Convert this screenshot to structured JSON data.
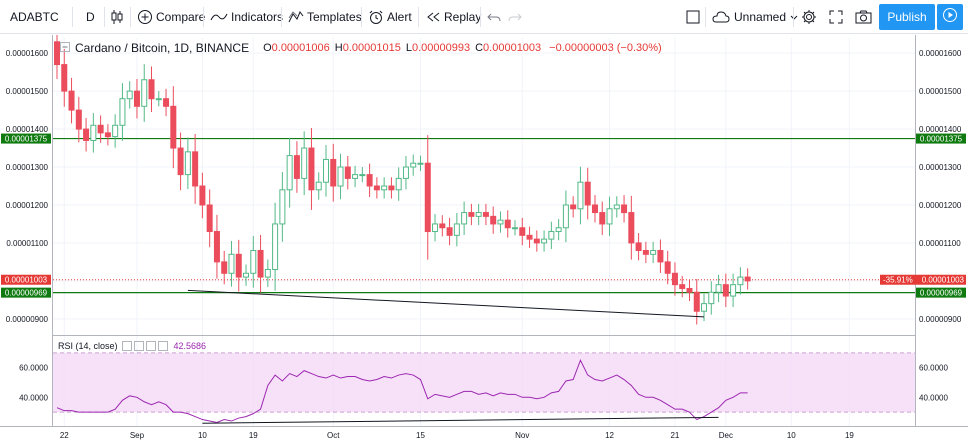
{
  "toolbar": {
    "symbol": "ADABTC",
    "interval": "D",
    "compare": "Compare",
    "indicators": "Indicators",
    "templates": "Templates",
    "alert": "Alert",
    "replay": "Replay",
    "layout_name": "Unnamed",
    "publish": "Publish"
  },
  "legend": {
    "title": "Cardano / Bitcoin, 1D, BINANCE",
    "open_label": "O",
    "open": "0.00001006",
    "high_label": "H",
    "high": "0.00001015",
    "low_label": "L",
    "low": "0.00000993",
    "close_label": "C",
    "close": "0.00001003",
    "change": "−0.00000003 (−0.30%)"
  },
  "colors": {
    "up": "#53b987",
    "down": "#eb4d5c",
    "accent": "#2196f3",
    "rsi": "#9c27b0",
    "hline": "#0f7a0f"
  },
  "chart_data": [
    {
      "type": "candlestick",
      "title": "Cardano / Bitcoin, 1D, BINANCE",
      "y_ticks": [
        "0.00001600",
        "0.00001500",
        "0.00001400",
        "0.00001300",
        "0.00001200",
        "0.00001100",
        "0.00001000",
        "0.00000900"
      ],
      "ylim": [
        8.6e-06,
        1.64e-05
      ],
      "x_ticks": [
        "22",
        "Sep",
        "10",
        "19",
        "Oct",
        "15",
        "Nov",
        "12",
        "21",
        "Dec",
        "10",
        "19"
      ],
      "horizontal_lines": [
        {
          "value": "0.00001375",
          "color": "#0f7a0f"
        },
        {
          "value": "0.00000969",
          "color": "#0f7a0f"
        }
      ],
      "last_price": {
        "value": "0.00001003",
        "change_label": "-35.91%",
        "color": "#e53935"
      },
      "closes": [
        1.57e-05,
        1.5e-05,
        1.45e-05,
        1.4e-05,
        1.37e-05,
        1.41e-05,
        1.39e-05,
        1.38e-05,
        1.41e-05,
        1.48e-05,
        1.5e-05,
        1.46e-05,
        1.53e-05,
        1.48e-05,
        1.48e-05,
        1.46e-05,
        1.35e-05,
        1.28e-05,
        1.34e-05,
        1.25e-05,
        1.2e-05,
        1.13e-05,
        1.05e-05,
        1.02e-05,
        1.07e-05,
        1.01e-05,
        1.02e-05,
        1.08e-05,
        1.01e-05,
        1.03e-05,
        1.15e-05,
        1.24e-05,
        1.33e-05,
        1.27e-05,
        1.35e-05,
        1.24e-05,
        1.26e-05,
        1.32e-05,
        1.25e-05,
        1.3e-05,
        1.27e-05,
        1.28e-05,
        1.28e-05,
        1.25e-05,
        1.24e-05,
        1.25e-05,
        1.24e-05,
        1.27e-05,
        1.3e-05,
        1.31e-05,
        1.31e-05,
        1.13e-05,
        1.15e-05,
        1.14e-05,
        1.12e-05,
        1.15e-05,
        1.18e-05,
        1.17e-05,
        1.18e-05,
        1.17e-05,
        1.15e-05,
        1.16e-05,
        1.14e-05,
        1.14e-05,
        1.12e-05,
        1.11e-05,
        1.1e-05,
        1.11e-05,
        1.13e-05,
        1.14e-05,
        1.2e-05,
        1.19e-05,
        1.26e-05,
        1.2e-05,
        1.18e-05,
        1.15e-05,
        1.19e-05,
        1.2e-05,
        1.18e-05,
        1.1e-05,
        1.08e-05,
        1.07e-05,
        1.08e-05,
        1.05e-05,
        1.02e-05,
        9.9e-06,
        9.8e-06,
        9.7e-06,
        9.2e-06,
        9.4e-06,
        9.7e-06,
        9.9e-06,
        9.6e-06,
        9.9e-06,
        1.01e-05,
        1e-05
      ],
      "trendlines": [
        {
          "from": [
            "Sep 8",
            9.75e-06
          ],
          "to": [
            "Nov 25",
            9.05e-06
          ]
        }
      ]
    },
    {
      "type": "line",
      "title": "RSI (14, close)",
      "value_label": "42.5686",
      "y_ticks": [
        "60.0000",
        "40.0000"
      ],
      "bands": [
        70,
        30
      ],
      "ylim": [
        22,
        80
      ],
      "values": [
        33,
        31,
        31,
        30,
        30,
        30,
        30,
        30,
        32,
        38,
        41,
        40,
        37,
        35,
        37,
        35,
        30,
        30,
        29,
        27,
        25,
        24,
        23,
        25,
        24,
        26,
        27,
        29,
        32,
        48,
        55,
        51,
        56,
        54,
        58,
        56,
        54,
        53,
        55,
        53,
        54,
        54,
        52,
        51,
        52,
        54,
        53,
        55,
        56,
        55,
        52,
        39,
        42,
        41,
        40,
        42,
        44,
        44,
        42,
        43,
        41,
        43,
        42,
        42,
        40,
        40,
        39,
        40,
        43,
        44,
        51,
        52,
        65,
        55,
        52,
        51,
        53,
        55,
        52,
        48,
        42,
        40,
        40,
        38,
        35,
        32,
        32,
        30,
        25,
        27,
        30,
        33,
        38,
        40,
        43,
        43
      ],
      "trendlines": [
        {
          "from": [
            "Sep 10",
            22.5
          ],
          "to": [
            "Nov 27",
            26.5
          ]
        }
      ]
    }
  ]
}
